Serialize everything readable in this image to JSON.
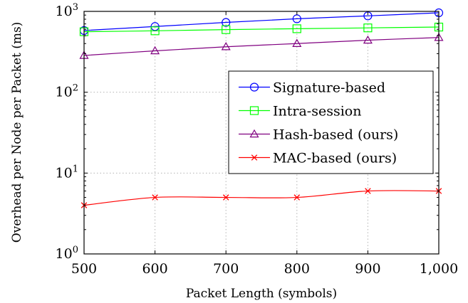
{
  "chart_data": {
    "type": "line",
    "xlabel": "Packet Length (symbols)",
    "ylabel": "Overhead per Node per Packet (ms)",
    "x": [
      500,
      600,
      700,
      800,
      900,
      1000
    ],
    "xlim": [
      500,
      1000
    ],
    "ylim": [
      1,
      1000
    ],
    "yscale": "log",
    "grid": true,
    "legend_position": "center-right",
    "x_tick_labels": [
      "500",
      "600",
      "700",
      "800",
      "900",
      "1,000"
    ],
    "y_tick_labels": [
      {
        "base": "10",
        "exp": "0"
      },
      {
        "base": "10",
        "exp": "1"
      },
      {
        "base": "10",
        "exp": "2"
      },
      {
        "base": "10",
        "exp": "3"
      }
    ],
    "series": [
      {
        "name": "Signature-based",
        "color": "#0000ff",
        "marker": "circle",
        "values": [
          580,
          650,
          730,
          810,
          880,
          960
        ]
      },
      {
        "name": "Intra-session",
        "color": "#00ff00",
        "marker": "square",
        "values": [
          560,
          575,
          595,
          610,
          625,
          640
        ]
      },
      {
        "name": "Hash-based (ours)",
        "color": "#800080",
        "marker": "triangle",
        "values": [
          285,
          325,
          365,
          400,
          440,
          475
        ]
      },
      {
        "name": "MAC-based (ours)",
        "color": "#ff0000",
        "marker": "cross",
        "values": [
          4,
          5,
          5,
          5,
          6,
          6
        ]
      }
    ]
  }
}
